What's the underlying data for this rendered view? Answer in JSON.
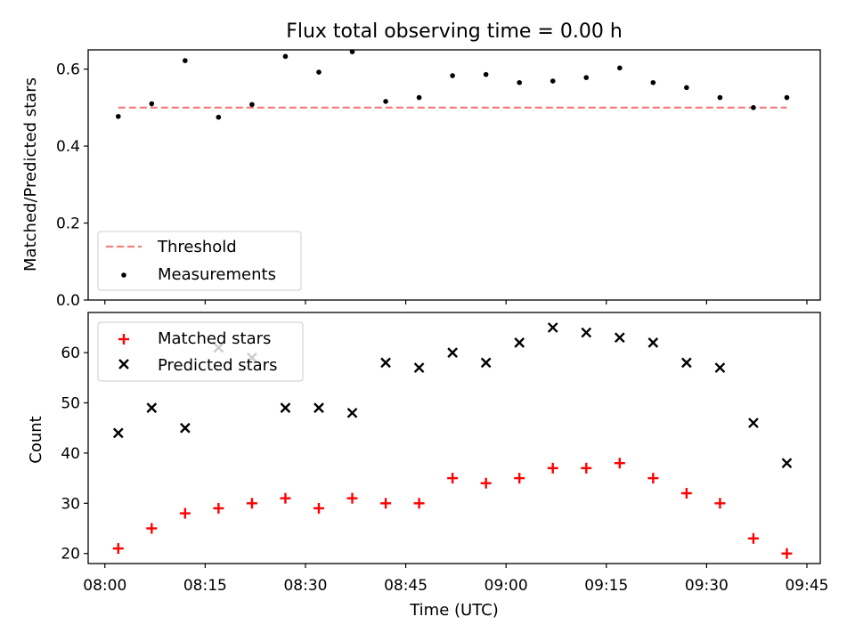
{
  "chart_data": [
    {
      "type": "scatter",
      "title": "Flux total observing time = 0.00 h",
      "xlabel": "",
      "ylabel": "Matched/Predicted stars",
      "ylim": [
        0.0,
        0.65
      ],
      "yticks": [
        "0.0",
        "0.2",
        "0.4",
        "0.6"
      ],
      "x": [
        "08:02",
        "08:07",
        "08:12",
        "08:17",
        "08:22",
        "08:27",
        "08:32",
        "08:37",
        "08:42",
        "08:47",
        "08:52",
        "08:57",
        "09:02",
        "09:07",
        "09:12",
        "09:17",
        "09:22",
        "09:27",
        "09:32",
        "09:37",
        "09:42"
      ],
      "series": [
        {
          "name": "Threshold",
          "style": "dashed-line",
          "color": "#f08080",
          "x": [
            "08:02",
            "09:42"
          ],
          "values": [
            0.5,
            0.5
          ]
        },
        {
          "name": "Measurements",
          "style": "dot",
          "color": "#000000",
          "values": [
            0.477,
            0.51,
            0.622,
            0.475,
            0.508,
            0.633,
            0.592,
            0.645,
            0.516,
            0.526,
            0.583,
            0.586,
            0.565,
            0.569,
            0.578,
            0.603,
            0.565,
            0.552,
            0.526,
            0.5,
            0.526
          ]
        }
      ],
      "legend": "lower-left",
      "grid": false
    },
    {
      "type": "scatter",
      "xlabel": "Time (UTC)",
      "ylabel": "Count",
      "ylim": [
        18,
        68
      ],
      "yticks": [
        "20",
        "30",
        "40",
        "50",
        "60"
      ],
      "xticks": [
        "08:00",
        "08:15",
        "08:30",
        "08:45",
        "09:00",
        "09:15",
        "09:30",
        "09:45"
      ],
      "x": [
        "08:02",
        "08:07",
        "08:12",
        "08:17",
        "08:22",
        "08:27",
        "08:32",
        "08:37",
        "08:42",
        "08:47",
        "08:52",
        "08:57",
        "09:02",
        "09:07",
        "09:12",
        "09:17",
        "09:22",
        "09:27",
        "09:32",
        "09:37",
        "09:42"
      ],
      "series": [
        {
          "name": "Matched stars",
          "style": "plus",
          "color": "#ff0000",
          "values": [
            21,
            25,
            28,
            29,
            30,
            31,
            29,
            31,
            30,
            30,
            35,
            34,
            35,
            37,
            37,
            38,
            35,
            32,
            30,
            23,
            20
          ]
        },
        {
          "name": "Predicted stars",
          "style": "cross",
          "color": "#000000",
          "values": [
            44,
            49,
            45,
            61,
            59,
            49,
            49,
            48,
            58,
            57,
            60,
            58,
            62,
            65,
            64,
            63,
            62,
            58,
            57,
            46,
            38
          ]
        }
      ],
      "legend": "upper-left",
      "grid": false
    }
  ]
}
